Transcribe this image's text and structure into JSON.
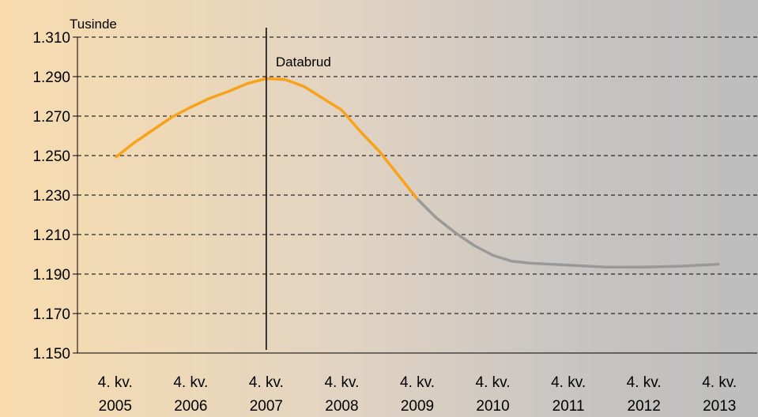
{
  "chart_data": {
    "type": "line",
    "unit_label": "Tusinde",
    "annotation": "Databrud",
    "annotation_x_index": 2,
    "ylim": [
      1150,
      1310
    ],
    "yticks": [
      1150,
      1170,
      1190,
      1210,
      1230,
      1250,
      1270,
      1290,
      1310
    ],
    "ytick_labels": [
      "1.150",
      "1.170",
      "1.190",
      "1.210",
      "1.230",
      "1.250",
      "1.270",
      "1.290",
      "1.310"
    ],
    "categories": [
      [
        "4. kv.",
        "2005"
      ],
      [
        "4. kv.",
        "2006"
      ],
      [
        "4. kv.",
        "2007"
      ],
      [
        "4. kv.",
        "2008"
      ],
      [
        "4. kv.",
        "2009"
      ],
      [
        "4. kv.",
        "2010"
      ],
      [
        "4. kv.",
        "2011"
      ],
      [
        "4. kv.",
        "2012"
      ],
      [
        "4. kv.",
        "2013"
      ]
    ],
    "grid": "horizontal-dashed",
    "series": [
      {
        "color": "#f7a21b",
        "x": [
          0,
          0.25,
          0.5,
          0.75,
          1,
          1.25,
          1.5,
          1.75,
          2,
          2.25,
          2.5,
          2.75,
          3,
          3.25,
          3.5,
          3.75,
          4
        ],
        "values": [
          1249,
          1256.5,
          1263,
          1269.5,
          1274.5,
          1279,
          1282.5,
          1286.5,
          1289,
          1288.5,
          1285,
          1279,
          1273,
          1262,
          1252,
          1240,
          1228
        ]
      },
      {
        "color": "#999999",
        "x": [
          4,
          4.25,
          4.5,
          4.75,
          5,
          5.25,
          5.5,
          5.75,
          6,
          6.5,
          7,
          7.5,
          8
        ],
        "values": [
          1228,
          1218.5,
          1211,
          1204.5,
          1199.5,
          1196.5,
          1195.5,
          1195,
          1194.5,
          1193.5,
          1193.5,
          1194,
          1195
        ]
      }
    ]
  }
}
